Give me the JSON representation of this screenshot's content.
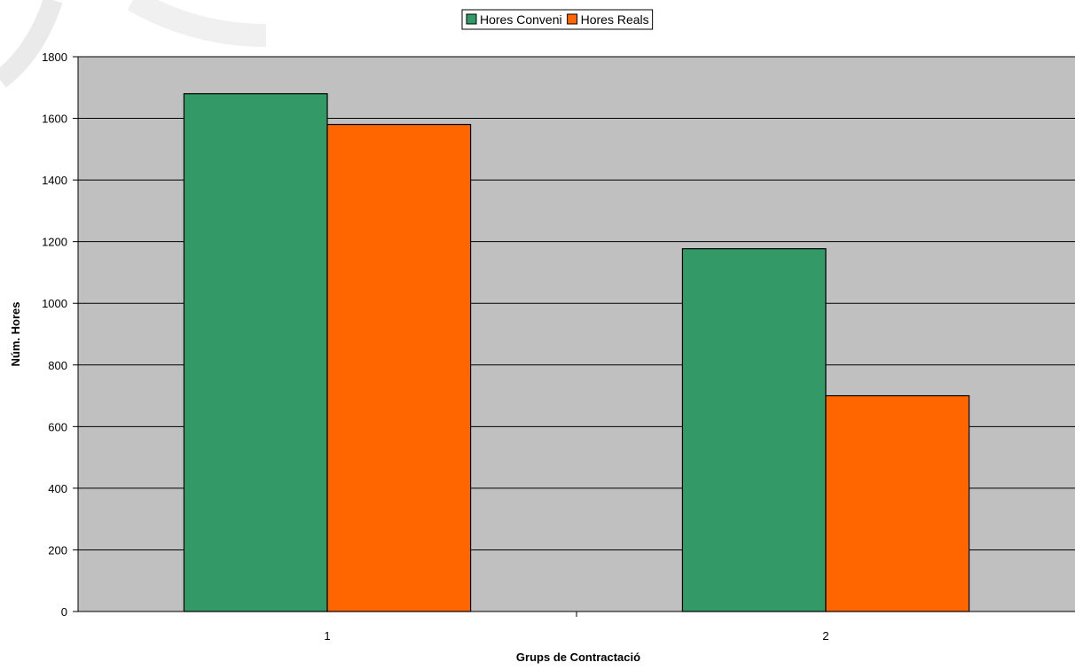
{
  "chart_data": {
    "type": "bar",
    "title": "",
    "xlabel": "Grups de Contractació",
    "ylabel": "Núm. Hores",
    "categories": [
      "1",
      "2"
    ],
    "series": [
      {
        "name": "Hores Conveni",
        "color": "#339966",
        "values": [
          1680,
          1177
        ]
      },
      {
        "name": "Hores Reals",
        "color": "#ff6600",
        "values": [
          1580,
          700
        ]
      }
    ],
    "ylim": [
      0,
      1800
    ],
    "y_ticks": [
      "0",
      "200",
      "400",
      "600",
      "800",
      "1000",
      "1200",
      "1400",
      "1600",
      "1800"
    ],
    "grid": true,
    "legend_position": "top-center",
    "plot_background": "#c0c0c0"
  }
}
